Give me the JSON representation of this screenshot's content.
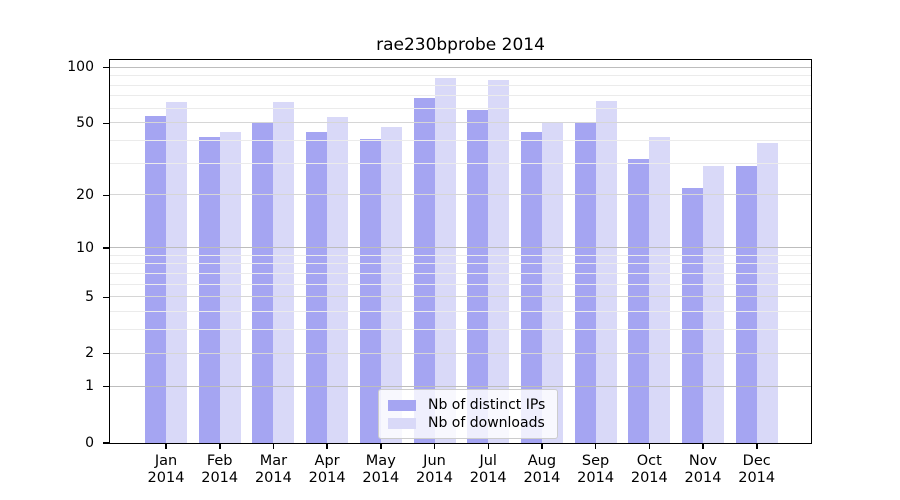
{
  "title": "rae230bprobe 2014",
  "colors": {
    "ips_bar": "#a5a5f2",
    "downloads_bar": "#d9d9f8",
    "grid_decade": "#bdbdbd",
    "grid_mid": "#d6d6d6",
    "grid_minor": "#ebebeb",
    "axis": "#000000",
    "legend_border": "#cccccc"
  },
  "legend": {
    "items": [
      {
        "label": "Nb of distinct IPs",
        "color_key": "ips_bar"
      },
      {
        "label": "Nb of downloads",
        "color_key": "downloads_bar"
      }
    ]
  },
  "y_axis": {
    "tick_labels": [
      "100",
      "50",
      "20",
      "10",
      "5",
      "2",
      "1",
      "0"
    ]
  },
  "x_axis": {
    "year_line": "2014"
  },
  "chart_data": {
    "type": "bar",
    "title": "rae230bprobe 2014",
    "categories": [
      "Jan",
      "Feb",
      "Mar",
      "Apr",
      "May",
      "Jun",
      "Jul",
      "Aug",
      "Sep",
      "Oct",
      "Nov",
      "Dec"
    ],
    "year": "2014",
    "series": [
      {
        "name": "Nb of distinct IPs",
        "values": [
          55,
          42,
          51,
          45,
          41,
          69,
          59,
          45,
          51,
          32,
          22,
          29
        ]
      },
      {
        "name": "Nb of downloads",
        "values": [
          65,
          45,
          65,
          54,
          48,
          88,
          86,
          51,
          66,
          42,
          29,
          39
        ]
      }
    ],
    "xlabel": "",
    "ylabel": "",
    "y_scale": "log1p",
    "ylim": [
      0,
      110
    ],
    "y_major_ticks": [
      0,
      1,
      2,
      5,
      10,
      20,
      50,
      100
    ],
    "grid": "on",
    "legend_position": "bottom-center-inside"
  }
}
